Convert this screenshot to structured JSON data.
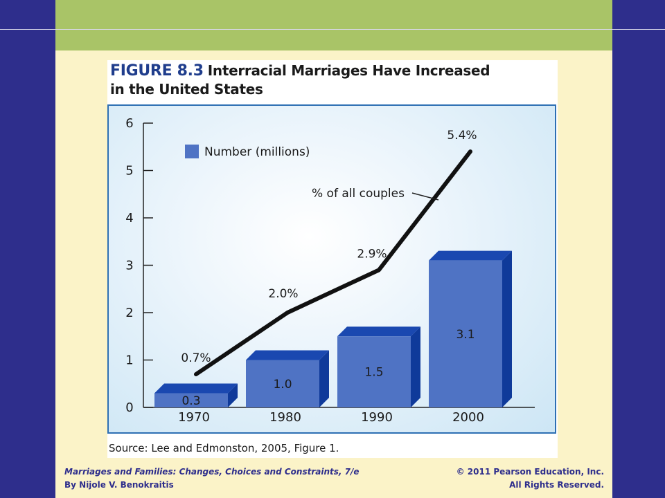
{
  "figure": {
    "number": "FIGURE 8.3",
    "title_line1": "Interracial Marriages Have Increased",
    "title_line2": "in the United States",
    "source": "Source: Lee and Edmonston, 2005, Figure 1."
  },
  "footer": {
    "book_title": "Marriages and Families: Changes, Choices and Constraints, 7/e",
    "author": "By Nijole V. Benokraitis",
    "copyright": "© 2011 Pearson Education, Inc.",
    "rights": "All Rights Reserved."
  },
  "colors": {
    "bar_face": "#4f73c4",
    "bar_side": "#0f3a9a",
    "bar_top": "#1a48b0",
    "line": "#111111",
    "axis": "#222222"
  },
  "chart_data": {
    "type": "bar",
    "categories": [
      "1970",
      "1980",
      "1990",
      "2000"
    ],
    "ylim": [
      0,
      6
    ],
    "yticks": [
      "0",
      "1",
      "2",
      "3",
      "4",
      "5",
      "6"
    ],
    "legend": [
      {
        "label": "Number (millions)"
      }
    ],
    "bar_labels": [
      "0.3",
      "1.0",
      "1.5",
      "3.1"
    ],
    "series": [
      {
        "name": "Number (millions)",
        "type": "bar",
        "values": [
          0.3,
          1.0,
          1.5,
          3.1
        ]
      },
      {
        "name": "% of all couples",
        "type": "line",
        "values": [
          0.7,
          2.0,
          2.9,
          5.4
        ],
        "labels": [
          "0.7%",
          "2.0%",
          "2.9%",
          "5.4%"
        ]
      }
    ]
  }
}
